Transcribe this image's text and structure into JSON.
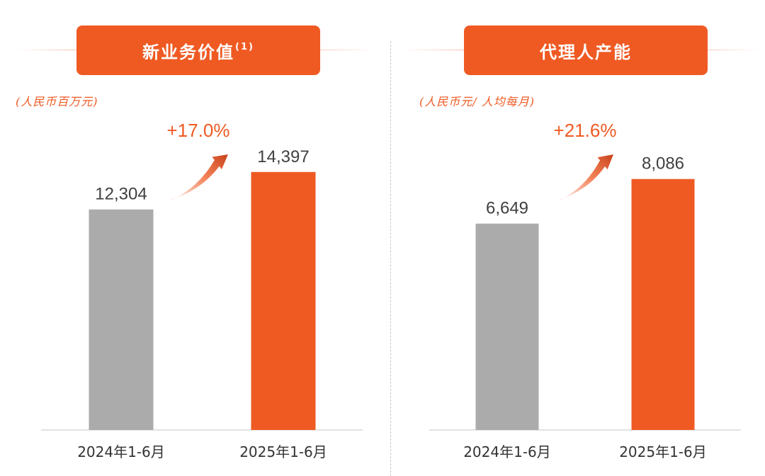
{
  "colors": {
    "accent": "#ef5a23",
    "bar_previous": "#ababab",
    "bar_current": "#ef5a23",
    "text": "#404040",
    "axis": "#d9d9d9"
  },
  "left_panel": {
    "title": "新业务价值",
    "title_footnote": "(1)",
    "unit": "(人民币百万元)"
  },
  "right_panel": {
    "title": "代理人产能",
    "unit": "(人民币元/ 人均每月)"
  },
  "chart_data": [
    {
      "type": "bar",
      "title": "新业务价值(1)",
      "ylabel": "(人民币百万元)",
      "categories": [
        "2024年1-6月",
        "2025年1-6月"
      ],
      "values": [
        12304,
        14397
      ],
      "value_labels": [
        "12,304",
        "14,397"
      ],
      "bar_colors": [
        "#ababab",
        "#ef5a23"
      ],
      "growth_label": "+17.0%",
      "ylim": [
        0,
        16800
      ],
      "grid": false,
      "legend": "none"
    },
    {
      "type": "bar",
      "title": "代理人产能",
      "ylabel": "(人民币元/ 人均每月)",
      "categories": [
        "2024年1-6月",
        "2025年1-6月"
      ],
      "values": [
        6649,
        8086
      ],
      "value_labels": [
        "6,649",
        "8,086"
      ],
      "bar_colors": [
        "#ababab",
        "#ef5a23"
      ],
      "growth_label": "+21.6%",
      "ylim": [
        0,
        9700
      ],
      "grid": false,
      "legend": "none"
    }
  ]
}
